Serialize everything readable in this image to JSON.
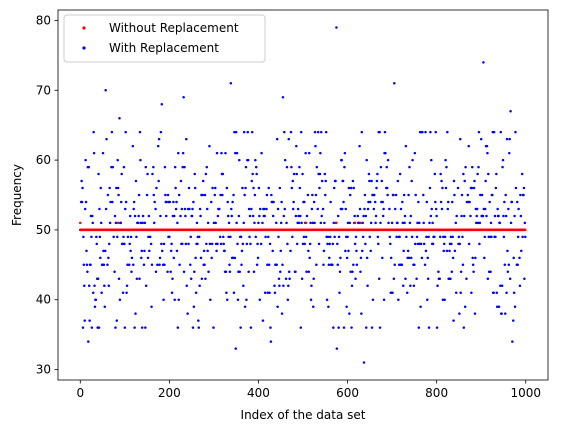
{
  "chart_data": {
    "type": "scatter",
    "title": "",
    "xlabel": "Index of the data set",
    "ylabel": "Frequency",
    "xlim": [
      -50,
      1050
    ],
    "ylim": [
      28.5,
      81.5
    ],
    "xticks": [
      0,
      200,
      400,
      600,
      800,
      1000
    ],
    "yticks": [
      30,
      40,
      50,
      60,
      70,
      80
    ],
    "grid": false,
    "legend_position": "top-left",
    "n_points": 1000,
    "series": [
      {
        "name": "Without Replacement",
        "color": "#ff0000",
        "marker": "dot",
        "baseline": 50,
        "values_note": "all 1000 values equal 50 except the listed exceptions",
        "exceptions": [
          [
            0,
            51
          ],
          [
            85,
            51
          ],
          [
            507,
            51
          ],
          [
            575,
            51
          ],
          [
            617,
            51
          ],
          [
            630,
            51
          ]
        ]
      },
      {
        "name": "With Replacement",
        "color": "#0000ff",
        "marker": "dot",
        "range": [
          31,
          79
        ],
        "mean": 50,
        "highlighted_points": [
          [
            18,
            34
          ],
          [
            57,
            70
          ],
          [
            88,
            66
          ],
          [
            183,
            68
          ],
          [
            232,
            69
          ],
          [
            338,
            71
          ],
          [
            349,
            33
          ],
          [
            428,
            34
          ],
          [
            455,
            69
          ],
          [
            575,
            79
          ],
          [
            576,
            33
          ],
          [
            637,
            31
          ],
          [
            705,
            71
          ],
          [
            905,
            74
          ],
          [
            966,
            67
          ],
          [
            970,
            34
          ]
        ]
      }
    ]
  }
}
